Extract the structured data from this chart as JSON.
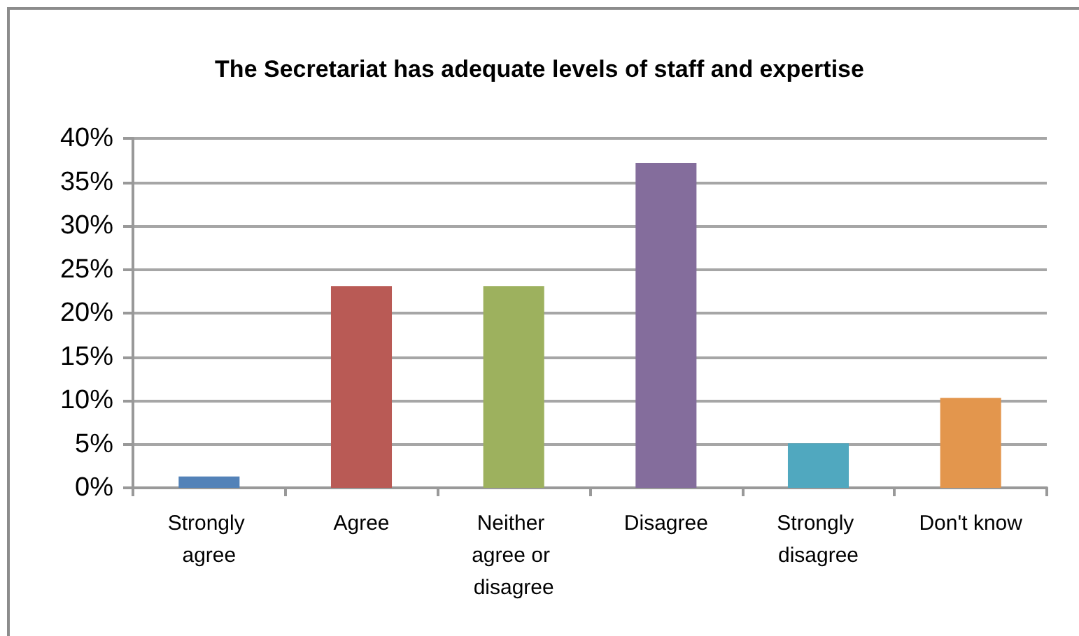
{
  "chart_data": {
    "type": "bar",
    "title": "The Secretariat has adequate levels of staff and expertise",
    "categories": [
      "Strongly agree",
      "Agree",
      "Neither agree or disagree",
      "Disagree",
      "Strongly disagree",
      "Don't know"
    ],
    "values": [
      1.3,
      23.1,
      23.1,
      37.2,
      5.1,
      10.3
    ],
    "colors": [
      "#5382b8",
      "#b95a55",
      "#9db15e",
      "#846d9c",
      "#50a8bf",
      "#e3964d"
    ],
    "ylim": [
      0,
      40
    ],
    "yticks": [
      {
        "value": 0,
        "label": "0%"
      },
      {
        "value": 5,
        "label": "5%"
      },
      {
        "value": 10,
        "label": "10%"
      },
      {
        "value": 15,
        "label": "15%"
      },
      {
        "value": 20,
        "label": "20%"
      },
      {
        "value": 25,
        "label": "25%"
      },
      {
        "value": 30,
        "label": "30%"
      },
      {
        "value": 35,
        "label": "35%"
      },
      {
        "value": 40,
        "label": "40%"
      }
    ],
    "grid": true
  }
}
